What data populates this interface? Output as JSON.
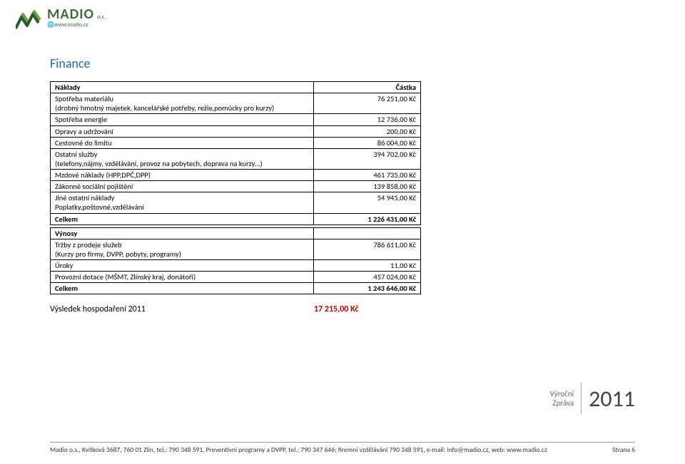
{
  "logo": {
    "brand": "MADIO",
    "suffix": "o.s.",
    "url": "www.madio.cz",
    "color_dark": "#2d5a2d",
    "color_light": "#6fa04f"
  },
  "title": "Finance",
  "costs": {
    "header_label": "Náklady",
    "header_amount": "Částka",
    "rows": [
      {
        "label": "Spotřeba materiálu\n(drobný hmotný majetek, kancelářské potřeby, režie,pomůcky pro kurzy)",
        "amount": "76 251,00 Kč"
      },
      {
        "label": "Spotřeba energie",
        "amount": "12 736,00 Kč"
      },
      {
        "label": "Opravy a udržování",
        "amount": "200,00 Kč"
      },
      {
        "label": "Cestovné do limitu",
        "amount": "86 004,00 Kč"
      },
      {
        "label": "Ostatní služby\n(telefony,nájmy, vzdělávání, provoz na pobytech, doprava na kurzy…)",
        "amount": "394 702,00 Kč"
      },
      {
        "label": "Mzdové náklady (HPP,DPČ,DPP)",
        "amount": "461 735,00 Kč"
      },
      {
        "label": "Zákonné sociální pojištění",
        "amount": "139 858,00 Kč"
      },
      {
        "label": "Jiné ostatní náklady\nPoplatky,poštovné,vzdělávání",
        "amount": "54 945,00 Kč"
      }
    ],
    "total_label": "Celkem",
    "total_amount": "1 226 431,00 Kč"
  },
  "revenues": {
    "header_label": "Výnosy",
    "rows": [
      {
        "label": "Tržby z prodeje služeb\n(Kurzy pro firmy, DVPP, pobyty, programy)",
        "amount": "786 611,00 Kč"
      },
      {
        "label": "Úroky",
        "amount": "11,00 Kč"
      },
      {
        "label": "Provozní dotace (MŠMT, Zlínský kraj, donátoři)",
        "amount": "457 024,00 Kč"
      }
    ],
    "total_label": "Celkem",
    "total_amount": "1 243 646,00 Kč"
  },
  "result": {
    "label": "Výsledek hospodaření 2011",
    "value": "17 215,00 Kč",
    "value_color": "#c00000"
  },
  "sidebox": {
    "line1": "Výroční",
    "line2": "Zpráva",
    "year": "2011"
  },
  "footer": {
    "text": "Madio o.s., Kvítková 3687, 760 01 Zlín, tel.: 790 348 591, Preventivní programy a DVPP, tel.: 790 347 646; firemní vzdělávání 790 348 591, e-mail: info@madio.cz, web: www.madio.cz",
    "page": "Strana 6"
  }
}
